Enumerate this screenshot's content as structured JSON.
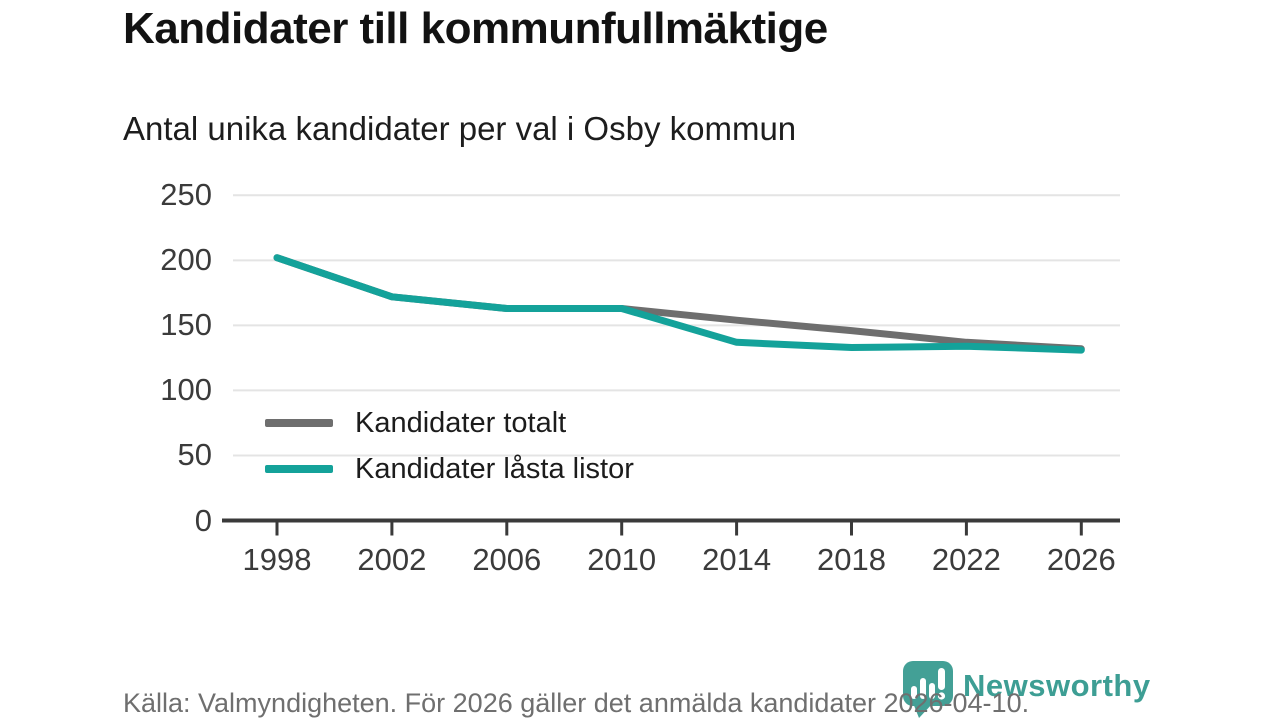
{
  "header": {
    "title": "Kandidater till kommunfullmäktige",
    "subtitle": "Antal unika kandidater per val i Osby kommun"
  },
  "chart_data": {
    "type": "line",
    "title": "Kandidater till kommunfullmäktige",
    "subtitle": "Antal unika kandidater per val i Osby kommun",
    "categories": [
      "1998",
      "2002",
      "2006",
      "2010",
      "2014",
      "2018",
      "2022",
      "2026"
    ],
    "series": [
      {
        "name": "Kandidater totalt",
        "color": "#6e6e6e",
        "values": [
          202,
          172,
          163,
          163,
          154,
          146,
          137,
          132
        ]
      },
      {
        "name": "Kandidater låsta listor",
        "color": "#14a29a",
        "values": [
          202,
          172,
          163,
          163,
          137,
          133,
          134,
          131
        ]
      }
    ],
    "yticks": [
      0,
      50,
      100,
      150,
      200,
      250
    ],
    "ylim": [
      0,
      250
    ],
    "xlabel": "",
    "ylabel": "",
    "grid": "horizontal",
    "legend_position": "inside-left-bottom",
    "colors": {
      "gridline": "#e4e4e4",
      "axis": "#3a3a3a",
      "tick_label": "#3b3b3b"
    }
  },
  "footer": {
    "source": "Källa: Valmyndigheten. För 2026 gäller det anmälda kandidater 2026-04-10.",
    "brand": "Newsworthy",
    "brand_color": "#3d9e94"
  }
}
